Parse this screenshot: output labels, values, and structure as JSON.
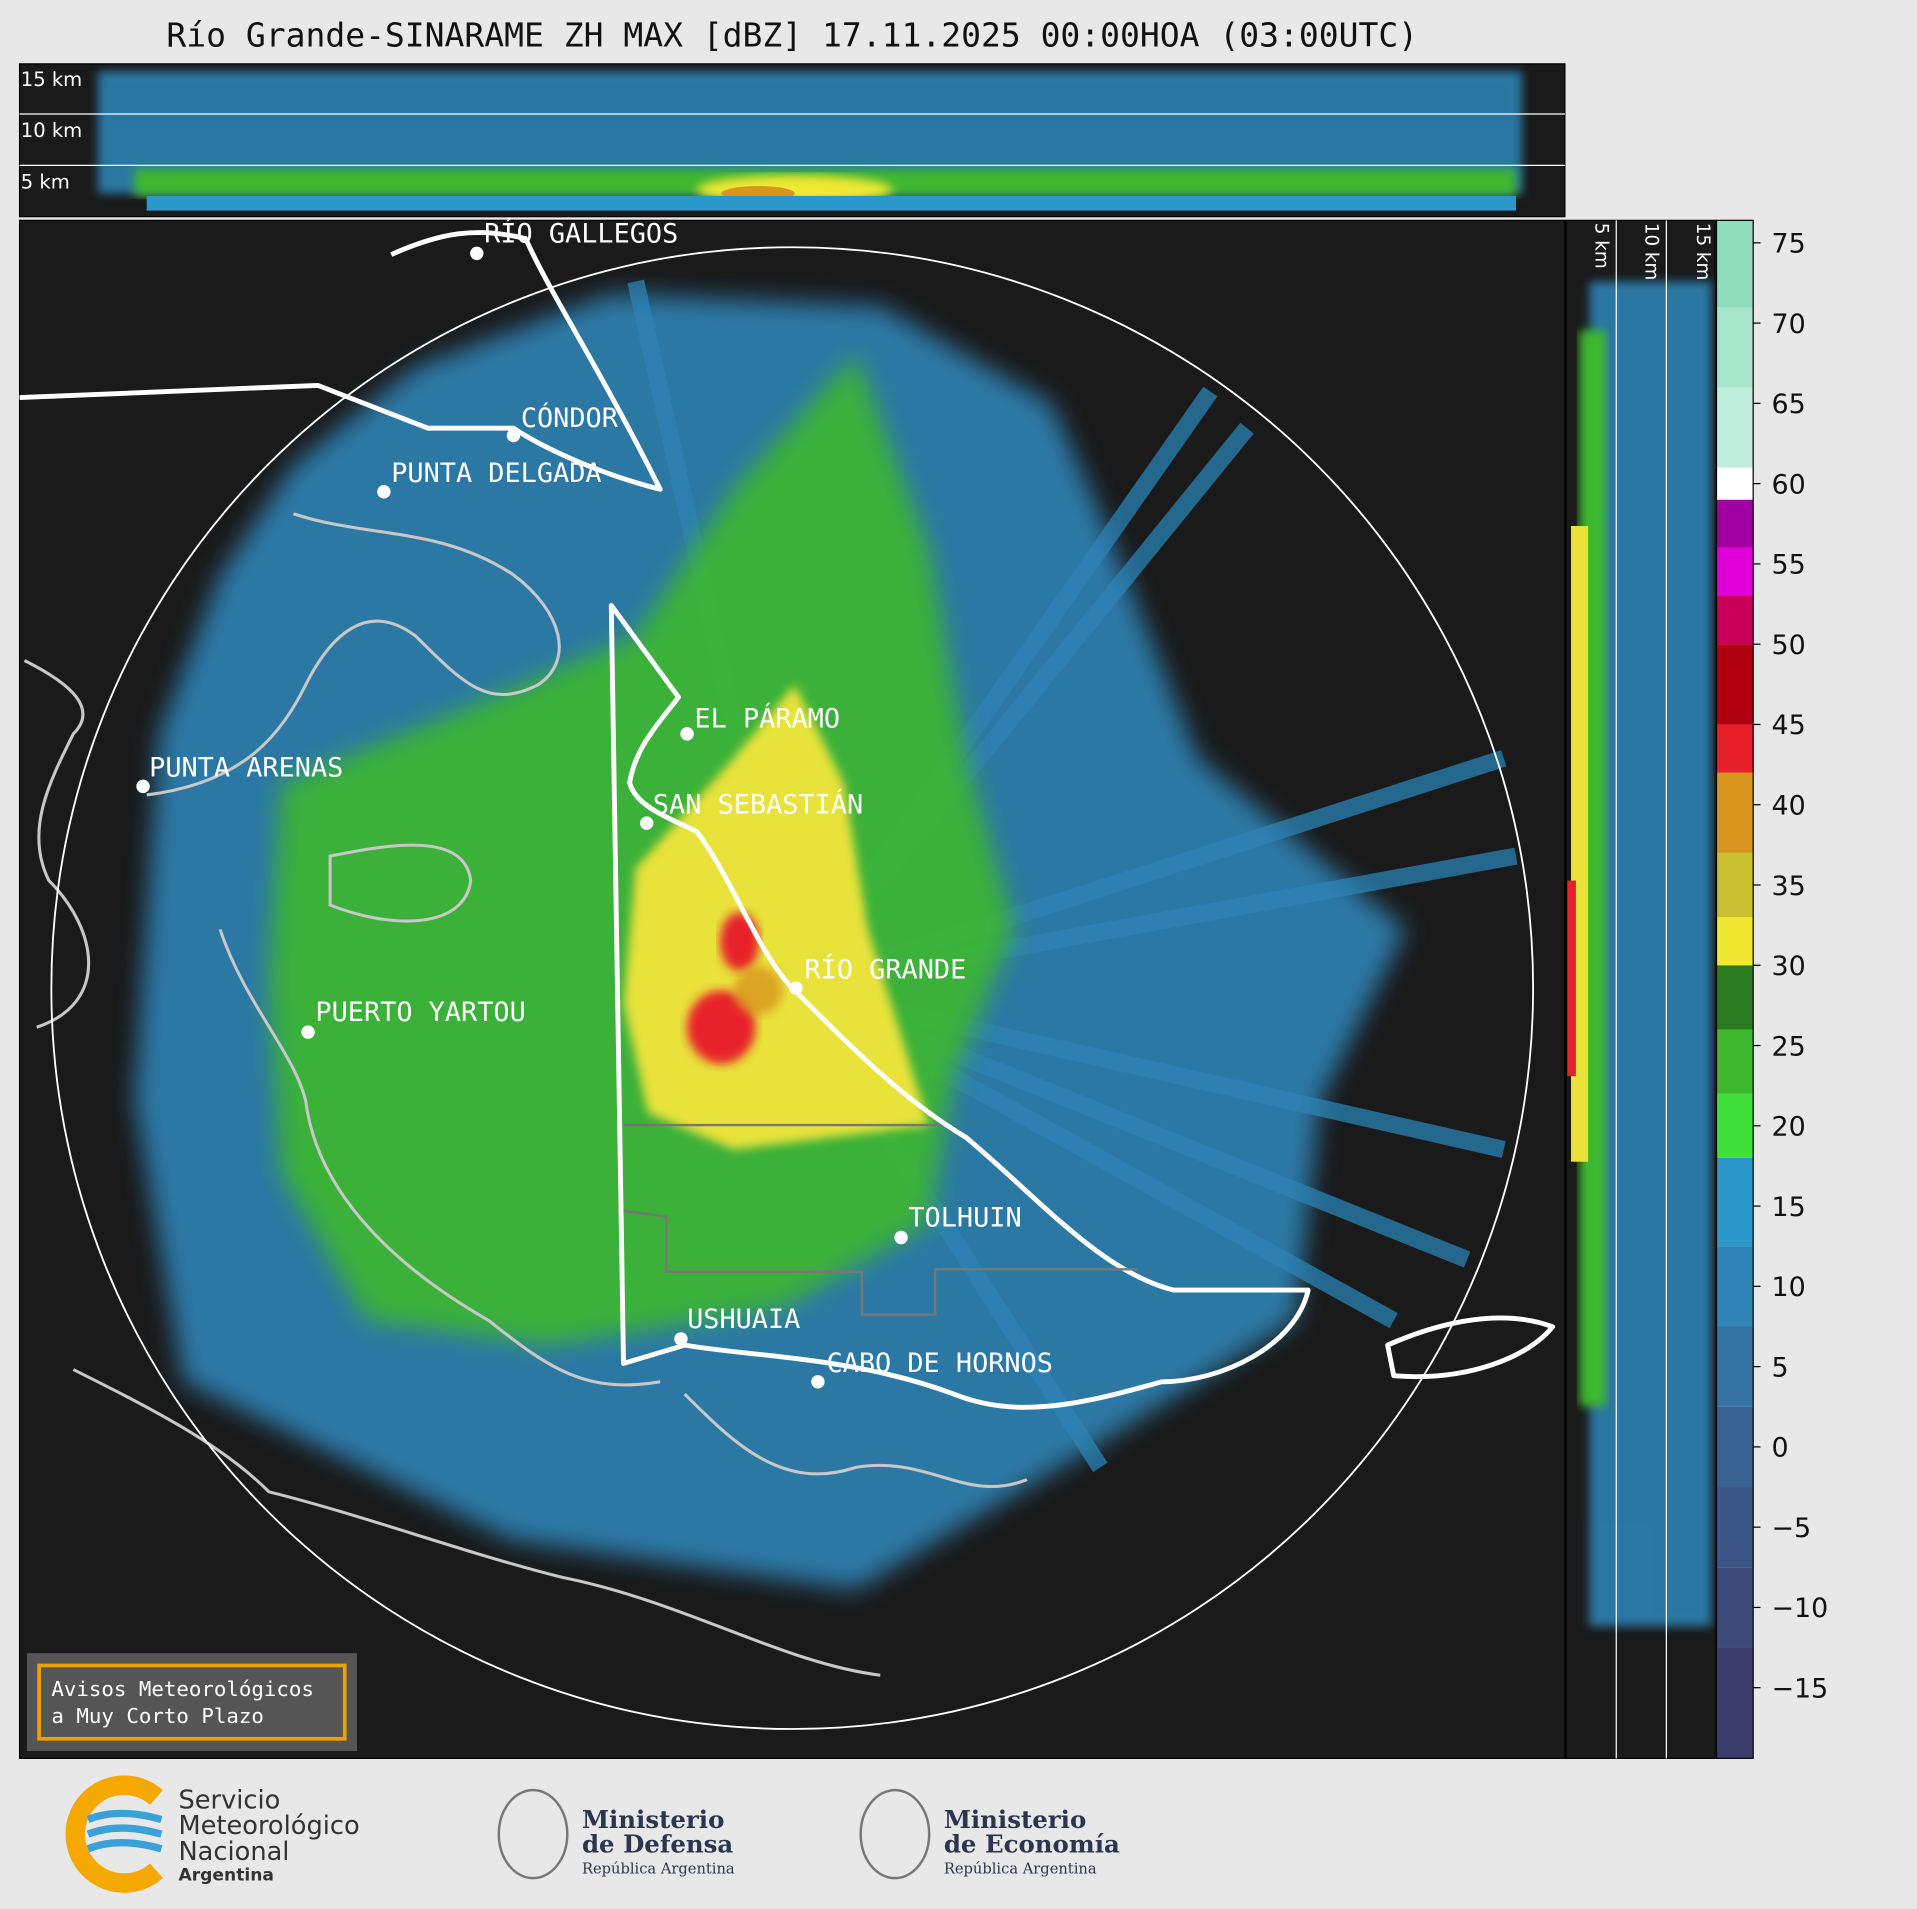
{
  "title": "Río Grande-SINARAME ZH MAX [dBZ] 17.11.2025 00:00HOA (03:00UTC)",
  "top_panel": {
    "height_labels": [
      "15 km",
      "10 km",
      "5 km"
    ]
  },
  "side_panel": {
    "height_labels": [
      "5 km",
      "10 km",
      "15 km"
    ]
  },
  "cities": [
    "RÍO GALLEGOS",
    "CÓNDOR",
    "PUNTA DELGADA",
    "EL PÁRAMO",
    "PUNTA ARENAS",
    "SAN SEBASTIÁN",
    "RÍO GRANDE",
    "PUERTO YARTOU",
    "TOLHUIN",
    "USHUAIA",
    "CABO DE HORNOS"
  ],
  "colorbar": {
    "vlim": [
      -19.4,
      76.4
    ],
    "ticks": [
      {
        "value": -15,
        "label": "−15"
      },
      {
        "value": -10,
        "label": "−10"
      },
      {
        "value": -5,
        "label": "−5"
      },
      0,
      5,
      10,
      15,
      20,
      25,
      30,
      35,
      40,
      45,
      50,
      55,
      60,
      65,
      70,
      75
    ],
    "bands": [
      {
        "from": -19.4,
        "to": -12.5,
        "color": "#3b3d6c"
      },
      {
        "from": -12.5,
        "to": -7.5,
        "color": "#3d4a7a"
      },
      {
        "from": -7.5,
        "to": -2.5,
        "color": "#3b5586"
      },
      {
        "from": -2.5,
        "to": 2.5,
        "color": "#386393"
      },
      {
        "from": 2.5,
        "to": 7.5,
        "color": "#3473a2"
      },
      {
        "from": 7.5,
        "to": 12.5,
        "color": "#2f83b5"
      },
      {
        "from": 12.5,
        "to": 18,
        "color": "#2b98cc"
      },
      {
        "from": 18,
        "to": 22,
        "color": "#3fe03a"
      },
      {
        "from": 22,
        "to": 26,
        "color": "#3cb82f"
      },
      {
        "from": 26,
        "to": 30,
        "color": "#2a7a20"
      },
      {
        "from": 30,
        "to": 33,
        "color": "#f0e830"
      },
      {
        "from": 33,
        "to": 37,
        "color": "#c8c030"
      },
      {
        "from": 37,
        "to": 42,
        "color": "#d8961e"
      },
      {
        "from": 42,
        "to": 45,
        "color": "#e8202a"
      },
      {
        "from": 45,
        "to": 50,
        "color": "#b00010"
      },
      {
        "from": 50,
        "to": 53,
        "color": "#c8005a"
      },
      {
        "from": 53,
        "to": 56,
        "color": "#e000d8"
      },
      {
        "from": 56,
        "to": 59,
        "color": "#a000a0"
      },
      {
        "from": 59,
        "to": 61,
        "color": "#ffffff"
      },
      {
        "from": 61,
        "to": 66,
        "color": "#bfeedd"
      },
      {
        "from": 66,
        "to": 71,
        "color": "#a8e6cc"
      },
      {
        "from": 71,
        "to": 76.4,
        "color": "#90dcbb"
      }
    ]
  },
  "notice": [
    "Avisos Meteorológicos",
    "a Muy Corto Plazo"
  ],
  "logos": [
    {
      "lines": [
        "Servicio",
        "Meteorológico",
        "Nacional",
        "Argentina"
      ]
    },
    {
      "lines": [
        "Ministerio",
        "de Defensa",
        "República Argentina"
      ]
    },
    {
      "lines": [
        "Ministerio",
        "de Economía",
        "República Argentina"
      ]
    }
  ]
}
